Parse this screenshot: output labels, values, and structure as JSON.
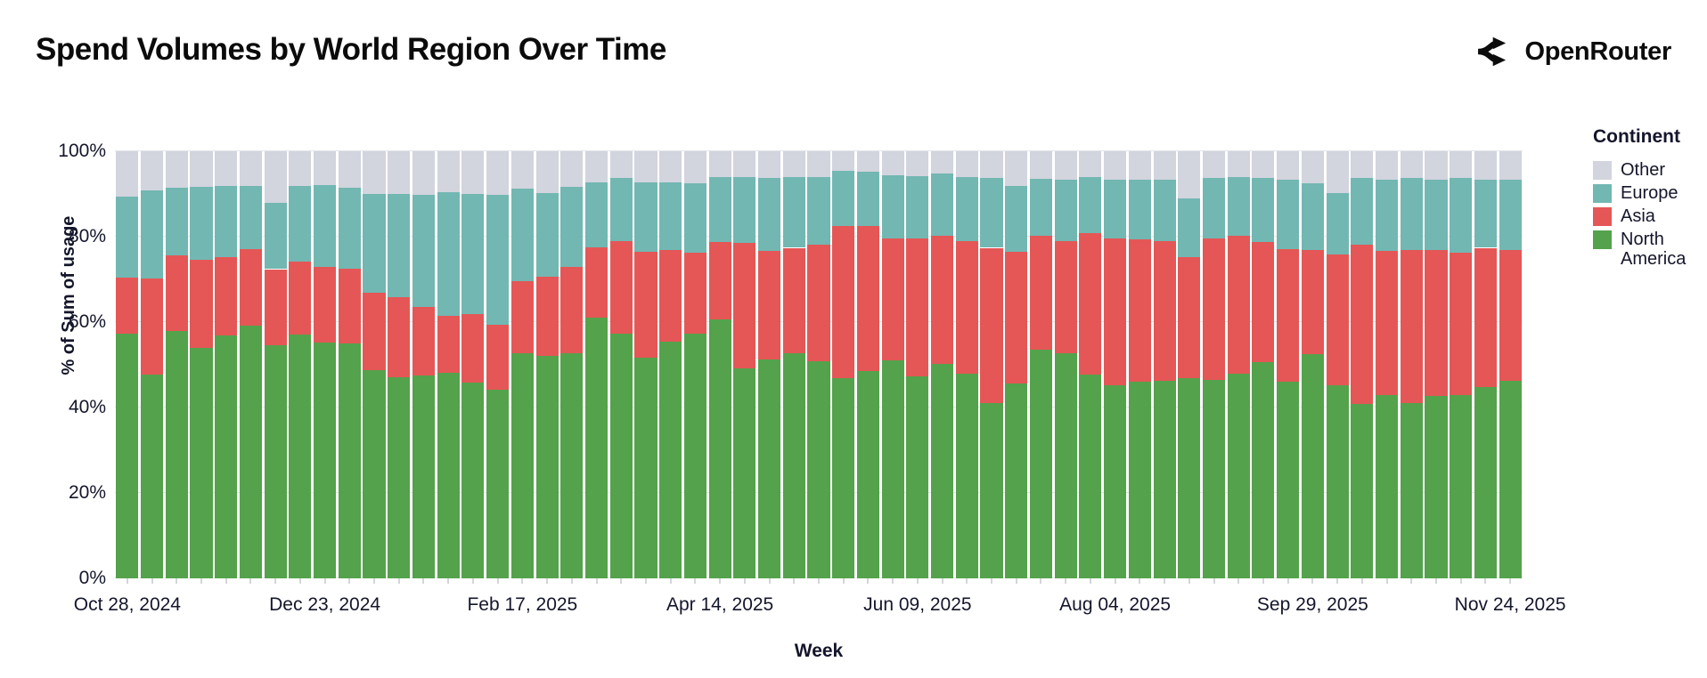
{
  "header": {
    "title": "Spend Volumes by World Region Over Time",
    "brand": {
      "name": "OpenRouter",
      "icon": "route-split-icon"
    }
  },
  "chart_data": {
    "type": "bar",
    "stacked": true,
    "normalized_percent": true,
    "title": "Spend Volumes by World Region Over Time",
    "xlabel": "Week",
    "ylabel": "% of Sum of usage",
    "ylim": [
      0,
      100
    ],
    "ytick_labels": [
      "0%",
      "20%",
      "40%",
      "60%",
      "80%",
      "100%"
    ],
    "grid": true,
    "legend_position": "right",
    "legend_title": "Continent",
    "legend_order": [
      "Other",
      "Europe",
      "Asia",
      "North America"
    ],
    "x_tick_label_every": 8,
    "x_major_tick_labels": [
      "Oct 28, 2024",
      "Dec 23, 2024",
      "Feb 17, 2025",
      "Apr 14, 2025",
      "Jun 09, 2025",
      "Aug 04, 2025",
      "Sep 29, 2025",
      "Nov 24, 2025"
    ],
    "categories": [
      "Oct 28, 2024",
      "Nov 04, 2024",
      "Nov 11, 2024",
      "Nov 18, 2024",
      "Nov 25, 2024",
      "Dec 02, 2024",
      "Dec 09, 2024",
      "Dec 16, 2024",
      "Dec 23, 2024",
      "Dec 30, 2024",
      "Jan 06, 2025",
      "Jan 13, 2025",
      "Jan 20, 2025",
      "Jan 27, 2025",
      "Feb 03, 2025",
      "Feb 10, 2025",
      "Feb 17, 2025",
      "Feb 24, 2025",
      "Mar 03, 2025",
      "Mar 10, 2025",
      "Mar 17, 2025",
      "Mar 24, 2025",
      "Mar 31, 2025",
      "Apr 07, 2025",
      "Apr 14, 2025",
      "Apr 21, 2025",
      "Apr 28, 2025",
      "May 05, 2025",
      "May 12, 2025",
      "May 19, 2025",
      "May 26, 2025",
      "Jun 02, 2025",
      "Jun 09, 2025",
      "Jun 16, 2025",
      "Jun 23, 2025",
      "Jun 30, 2025",
      "Jul 07, 2025",
      "Jul 14, 2025",
      "Jul 21, 2025",
      "Jul 28, 2025",
      "Aug 04, 2025",
      "Aug 11, 2025",
      "Aug 18, 2025",
      "Aug 25, 2025",
      "Sep 01, 2025",
      "Sep 08, 2025",
      "Sep 15, 2025",
      "Sep 22, 2025",
      "Sep 29, 2025",
      "Oct 06, 2025",
      "Oct 13, 2025",
      "Oct 20, 2025",
      "Oct 27, 2025",
      "Nov 03, 2025",
      "Nov 10, 2025",
      "Nov 17, 2025",
      "Nov 24, 2025"
    ],
    "series": [
      {
        "name": "North America",
        "color": "#54a24b",
        "values": [
          57.2,
          47.8,
          57.9,
          54.0,
          56.8,
          59.1,
          54.5,
          57.0,
          55.3,
          55.0,
          48.7,
          47.1,
          47.6,
          48.1,
          45.8,
          44.1,
          52.8,
          52.0,
          52.7,
          61.0,
          57.2,
          51.6,
          55.4,
          57.2,
          60.7,
          49.2,
          51.3,
          52.7,
          50.9,
          46.9,
          48.5,
          51.0,
          47.3,
          50.2,
          47.9,
          41.1,
          45.7,
          53.6,
          52.7,
          47.8,
          45.2,
          46.0,
          46.2,
          46.9,
          46.4,
          47.9,
          50.6,
          46.0,
          52.4,
          45.3,
          40.9,
          42.9,
          41.1,
          42.7,
          42.9,
          44.8,
          46.2
        ]
      },
      {
        "name": "Asia",
        "color": "#e45756",
        "values": [
          13.2,
          22.4,
          17.8,
          20.5,
          18.4,
          18.0,
          17.9,
          17.1,
          17.7,
          17.4,
          18.2,
          18.8,
          15.9,
          13.3,
          16.1,
          15.3,
          16.8,
          18.6,
          20.2,
          16.4,
          21.7,
          24.8,
          21.4,
          19.0,
          18.1,
          29.4,
          25.4,
          24.7,
          27.2,
          35.7,
          34.0,
          28.5,
          32.3,
          30.1,
          31.0,
          36.3,
          30.7,
          26.7,
          26.2,
          33.0,
          34.3,
          33.3,
          32.7,
          28.3,
          33.2,
          32.3,
          28.2,
          31.1,
          24.5,
          30.6,
          37.2,
          33.8,
          35.8,
          34.2,
          33.3,
          32.6,
          30.7
        ]
      },
      {
        "name": "Europe",
        "color": "#72b7b2",
        "values": [
          19.0,
          20.6,
          15.8,
          17.2,
          16.6,
          14.8,
          15.6,
          17.7,
          19.0,
          19.0,
          23.1,
          24.2,
          26.3,
          29.1,
          28.1,
          30.4,
          21.6,
          19.7,
          18.8,
          15.3,
          14.9,
          16.3,
          15.9,
          16.4,
          15.1,
          15.3,
          17.1,
          16.5,
          15.8,
          12.8,
          12.8,
          14.8,
          14.5,
          14.4,
          15.0,
          16.4,
          15.5,
          13.3,
          14.5,
          13.2,
          13.9,
          14.1,
          14.5,
          13.7,
          14.2,
          13.8,
          15.0,
          16.2,
          15.6,
          14.4,
          15.7,
          16.7,
          16.9,
          16.5,
          17.6,
          15.9,
          16.5
        ]
      },
      {
        "name": "Other",
        "color": "#d2d4de",
        "values": [
          10.6,
          9.2,
          8.5,
          8.3,
          8.2,
          8.1,
          12.0,
          8.2,
          8.0,
          8.6,
          10.0,
          9.9,
          10.2,
          9.5,
          10.0,
          10.2,
          8.8,
          9.7,
          8.3,
          7.3,
          6.2,
          7.3,
          7.3,
          7.4,
          6.1,
          6.1,
          6.2,
          6.1,
          6.1,
          4.6,
          4.7,
          5.7,
          5.9,
          5.3,
          6.1,
          6.2,
          8.1,
          6.4,
          6.6,
          6.0,
          6.6,
          6.6,
          6.6,
          11.1,
          6.2,
          6.0,
          6.2,
          6.7,
          7.5,
          9.7,
          6.2,
          6.6,
          6.2,
          6.6,
          6.2,
          6.7,
          6.6
        ]
      }
    ]
  }
}
